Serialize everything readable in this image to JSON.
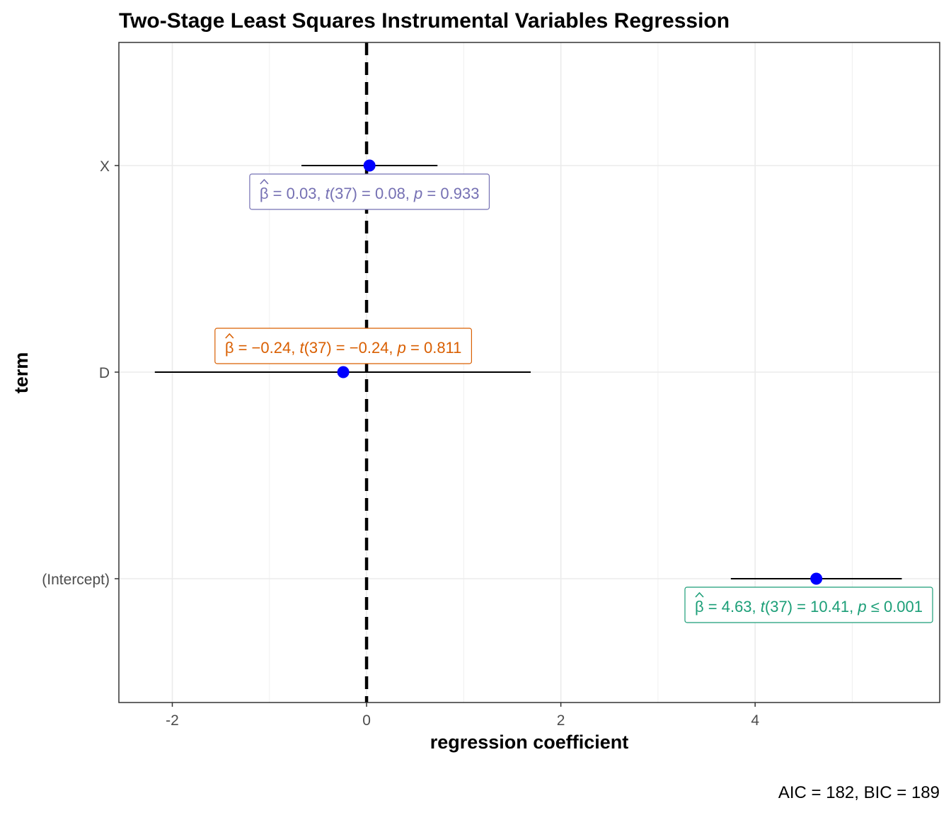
{
  "chart_data": {
    "type": "scatter",
    "subtype": "coefficient-plot",
    "title": "Two-Stage Least Squares Instrumental Variables Regression",
    "xlabel": "regression coefficient",
    "ylabel": "term",
    "caption": "AIC = 182, BIC = 189",
    "xlim": [
      -2.55,
      5.9
    ],
    "x_ticks": [
      -2,
      0,
      2,
      4
    ],
    "x_tick_labels": [
      "-2",
      "0",
      "2",
      "4"
    ],
    "x_minor_gridlines": [
      -1,
      1,
      3,
      5
    ],
    "reference_line": 0,
    "grid": true,
    "terms": [
      {
        "term": "X",
        "estimate": 0.03,
        "conf_low": -0.67,
        "conf_high": 0.73,
        "label": "β̂ = 0.03,  t(37) = 0.08,  p = 0.933",
        "label_parts": {
          "est": "0.03",
          "df": "37",
          "t": "0.08",
          "prel": "=",
          "p": "0.933"
        },
        "label_color": "#7570b3",
        "label_position": "below"
      },
      {
        "term": "D",
        "estimate": -0.24,
        "conf_low": -2.18,
        "conf_high": 1.69,
        "label": "β̂ = −0.24,  t(37) = −0.24,  p = 0.811",
        "label_parts": {
          "est": "−0.24",
          "df": "37",
          "t": "−0.24",
          "prel": "=",
          "p": "0.811"
        },
        "label_color": "#d95f02",
        "label_position": "above"
      },
      {
        "term": "(Intercept)",
        "estimate": 4.63,
        "conf_low": 3.75,
        "conf_high": 5.51,
        "label": "β̂ = 4.63,  t(37) = 10.41,  p ≤ 0.001",
        "label_parts": {
          "est": "4.63",
          "df": "37",
          "t": "10.41",
          "prel": "≤",
          "p": "0.001"
        },
        "label_color": "#1b9e77",
        "label_position": "below"
      }
    ],
    "point_color": "#0000ff",
    "errorbar_color": "#000000"
  }
}
